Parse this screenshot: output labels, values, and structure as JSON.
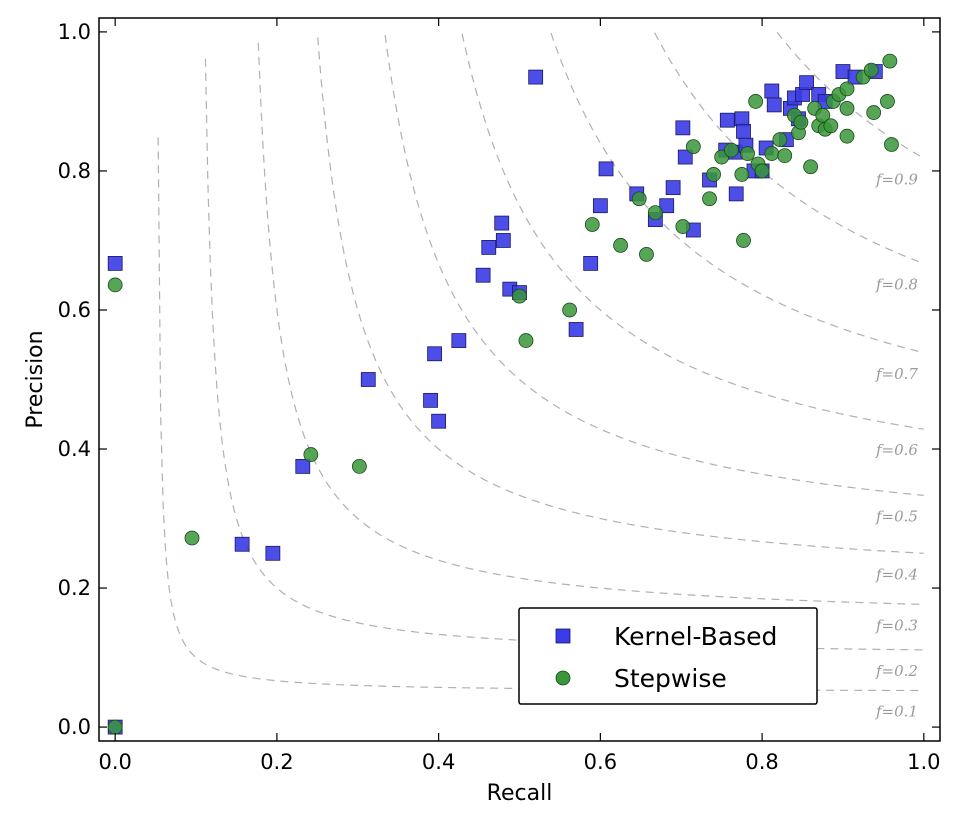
{
  "chart_data": {
    "type": "scatter",
    "title": "",
    "xlabel": "Recall",
    "ylabel": "Precision",
    "xlim": [
      -0.02,
      1.02
    ],
    "ylim": [
      -0.02,
      1.02
    ],
    "xticks": [
      0.0,
      0.2,
      0.4,
      0.6,
      0.8,
      1.0
    ],
    "yticks": [
      0.0,
      0.2,
      0.4,
      0.6,
      0.8,
      1.0
    ],
    "xtick_labels": [
      "0.0",
      "0.2",
      "0.4",
      "0.6",
      "0.8",
      "1.0"
    ],
    "ytick_labels": [
      "0.0",
      "0.2",
      "0.4",
      "0.6",
      "0.8",
      "1.0"
    ],
    "grid": false,
    "legend_position": "lower-right",
    "iso_f_contours": {
      "values": [
        0.1,
        0.2,
        0.3,
        0.4,
        0.5,
        0.6,
        0.7,
        0.8,
        0.9
      ],
      "labels": [
        "f=0.1",
        "f=0.2",
        "f=0.3",
        "f=0.4",
        "f=0.5",
        "f=0.6",
        "f=0.7",
        "f=0.8",
        "f=0.9"
      ],
      "color": "#b0b0b0",
      "style": "dashed"
    },
    "series": [
      {
        "name": "Kernel-Based",
        "marker": "square",
        "color": "#3a3ae6",
        "points": [
          [
            0.0,
            0.0
          ],
          [
            0.0,
            0.667
          ],
          [
            0.157,
            0.263
          ],
          [
            0.195,
            0.25
          ],
          [
            0.232,
            0.375
          ],
          [
            0.313,
            0.5
          ],
          [
            0.39,
            0.47
          ],
          [
            0.4,
            0.44
          ],
          [
            0.395,
            0.537
          ],
          [
            0.425,
            0.556
          ],
          [
            0.455,
            0.65
          ],
          [
            0.462,
            0.69
          ],
          [
            0.478,
            0.725
          ],
          [
            0.48,
            0.7
          ],
          [
            0.488,
            0.63
          ],
          [
            0.5,
            0.625
          ],
          [
            0.52,
            0.935
          ],
          [
            0.57,
            0.572
          ],
          [
            0.588,
            0.667
          ],
          [
            0.6,
            0.75
          ],
          [
            0.607,
            0.803
          ],
          [
            0.645,
            0.767
          ],
          [
            0.668,
            0.73
          ],
          [
            0.682,
            0.75
          ],
          [
            0.69,
            0.776
          ],
          [
            0.702,
            0.862
          ],
          [
            0.705,
            0.82
          ],
          [
            0.715,
            0.715
          ],
          [
            0.735,
            0.787
          ],
          [
            0.755,
            0.83
          ],
          [
            0.757,
            0.873
          ],
          [
            0.767,
            0.827
          ],
          [
            0.768,
            0.767
          ],
          [
            0.775,
            0.875
          ],
          [
            0.777,
            0.857
          ],
          [
            0.78,
            0.837
          ],
          [
            0.79,
            0.8
          ],
          [
            0.8,
            0.8
          ],
          [
            0.805,
            0.833
          ],
          [
            0.812,
            0.915
          ],
          [
            0.815,
            0.895
          ],
          [
            0.83,
            0.845
          ],
          [
            0.835,
            0.89
          ],
          [
            0.84,
            0.905
          ],
          [
            0.845,
            0.875
          ],
          [
            0.85,
            0.91
          ],
          [
            0.855,
            0.927
          ],
          [
            0.87,
            0.91
          ],
          [
            0.878,
            0.9
          ],
          [
            0.9,
            0.943
          ],
          [
            0.915,
            0.935
          ],
          [
            0.94,
            0.943
          ]
        ]
      },
      {
        "name": "Stepwise",
        "marker": "circle",
        "color": "#3a963a",
        "points": [
          [
            0.0,
            0.0
          ],
          [
            0.0,
            0.636
          ],
          [
            0.095,
            0.272
          ],
          [
            0.242,
            0.392
          ],
          [
            0.302,
            0.375
          ],
          [
            0.5,
            0.62
          ],
          [
            0.508,
            0.556
          ],
          [
            0.562,
            0.6
          ],
          [
            0.59,
            0.723
          ],
          [
            0.625,
            0.693
          ],
          [
            0.648,
            0.76
          ],
          [
            0.657,
            0.68
          ],
          [
            0.668,
            0.74
          ],
          [
            0.702,
            0.72
          ],
          [
            0.715,
            0.835
          ],
          [
            0.735,
            0.76
          ],
          [
            0.74,
            0.795
          ],
          [
            0.75,
            0.82
          ],
          [
            0.762,
            0.83
          ],
          [
            0.775,
            0.795
          ],
          [
            0.777,
            0.7
          ],
          [
            0.782,
            0.825
          ],
          [
            0.792,
            0.9
          ],
          [
            0.795,
            0.81
          ],
          [
            0.8,
            0.8
          ],
          [
            0.812,
            0.825
          ],
          [
            0.822,
            0.845
          ],
          [
            0.828,
            0.822
          ],
          [
            0.84,
            0.88
          ],
          [
            0.845,
            0.855
          ],
          [
            0.848,
            0.87
          ],
          [
            0.86,
            0.806
          ],
          [
            0.865,
            0.89
          ],
          [
            0.87,
            0.865
          ],
          [
            0.875,
            0.88
          ],
          [
            0.878,
            0.86
          ],
          [
            0.885,
            0.865
          ],
          [
            0.888,
            0.9
          ],
          [
            0.895,
            0.91
          ],
          [
            0.905,
            0.85
          ],
          [
            0.905,
            0.89
          ],
          [
            0.905,
            0.918
          ],
          [
            0.925,
            0.935
          ],
          [
            0.935,
            0.945
          ],
          [
            0.938,
            0.884
          ],
          [
            0.955,
            0.9
          ],
          [
            0.958,
            0.958
          ],
          [
            0.96,
            0.838
          ]
        ]
      }
    ]
  }
}
